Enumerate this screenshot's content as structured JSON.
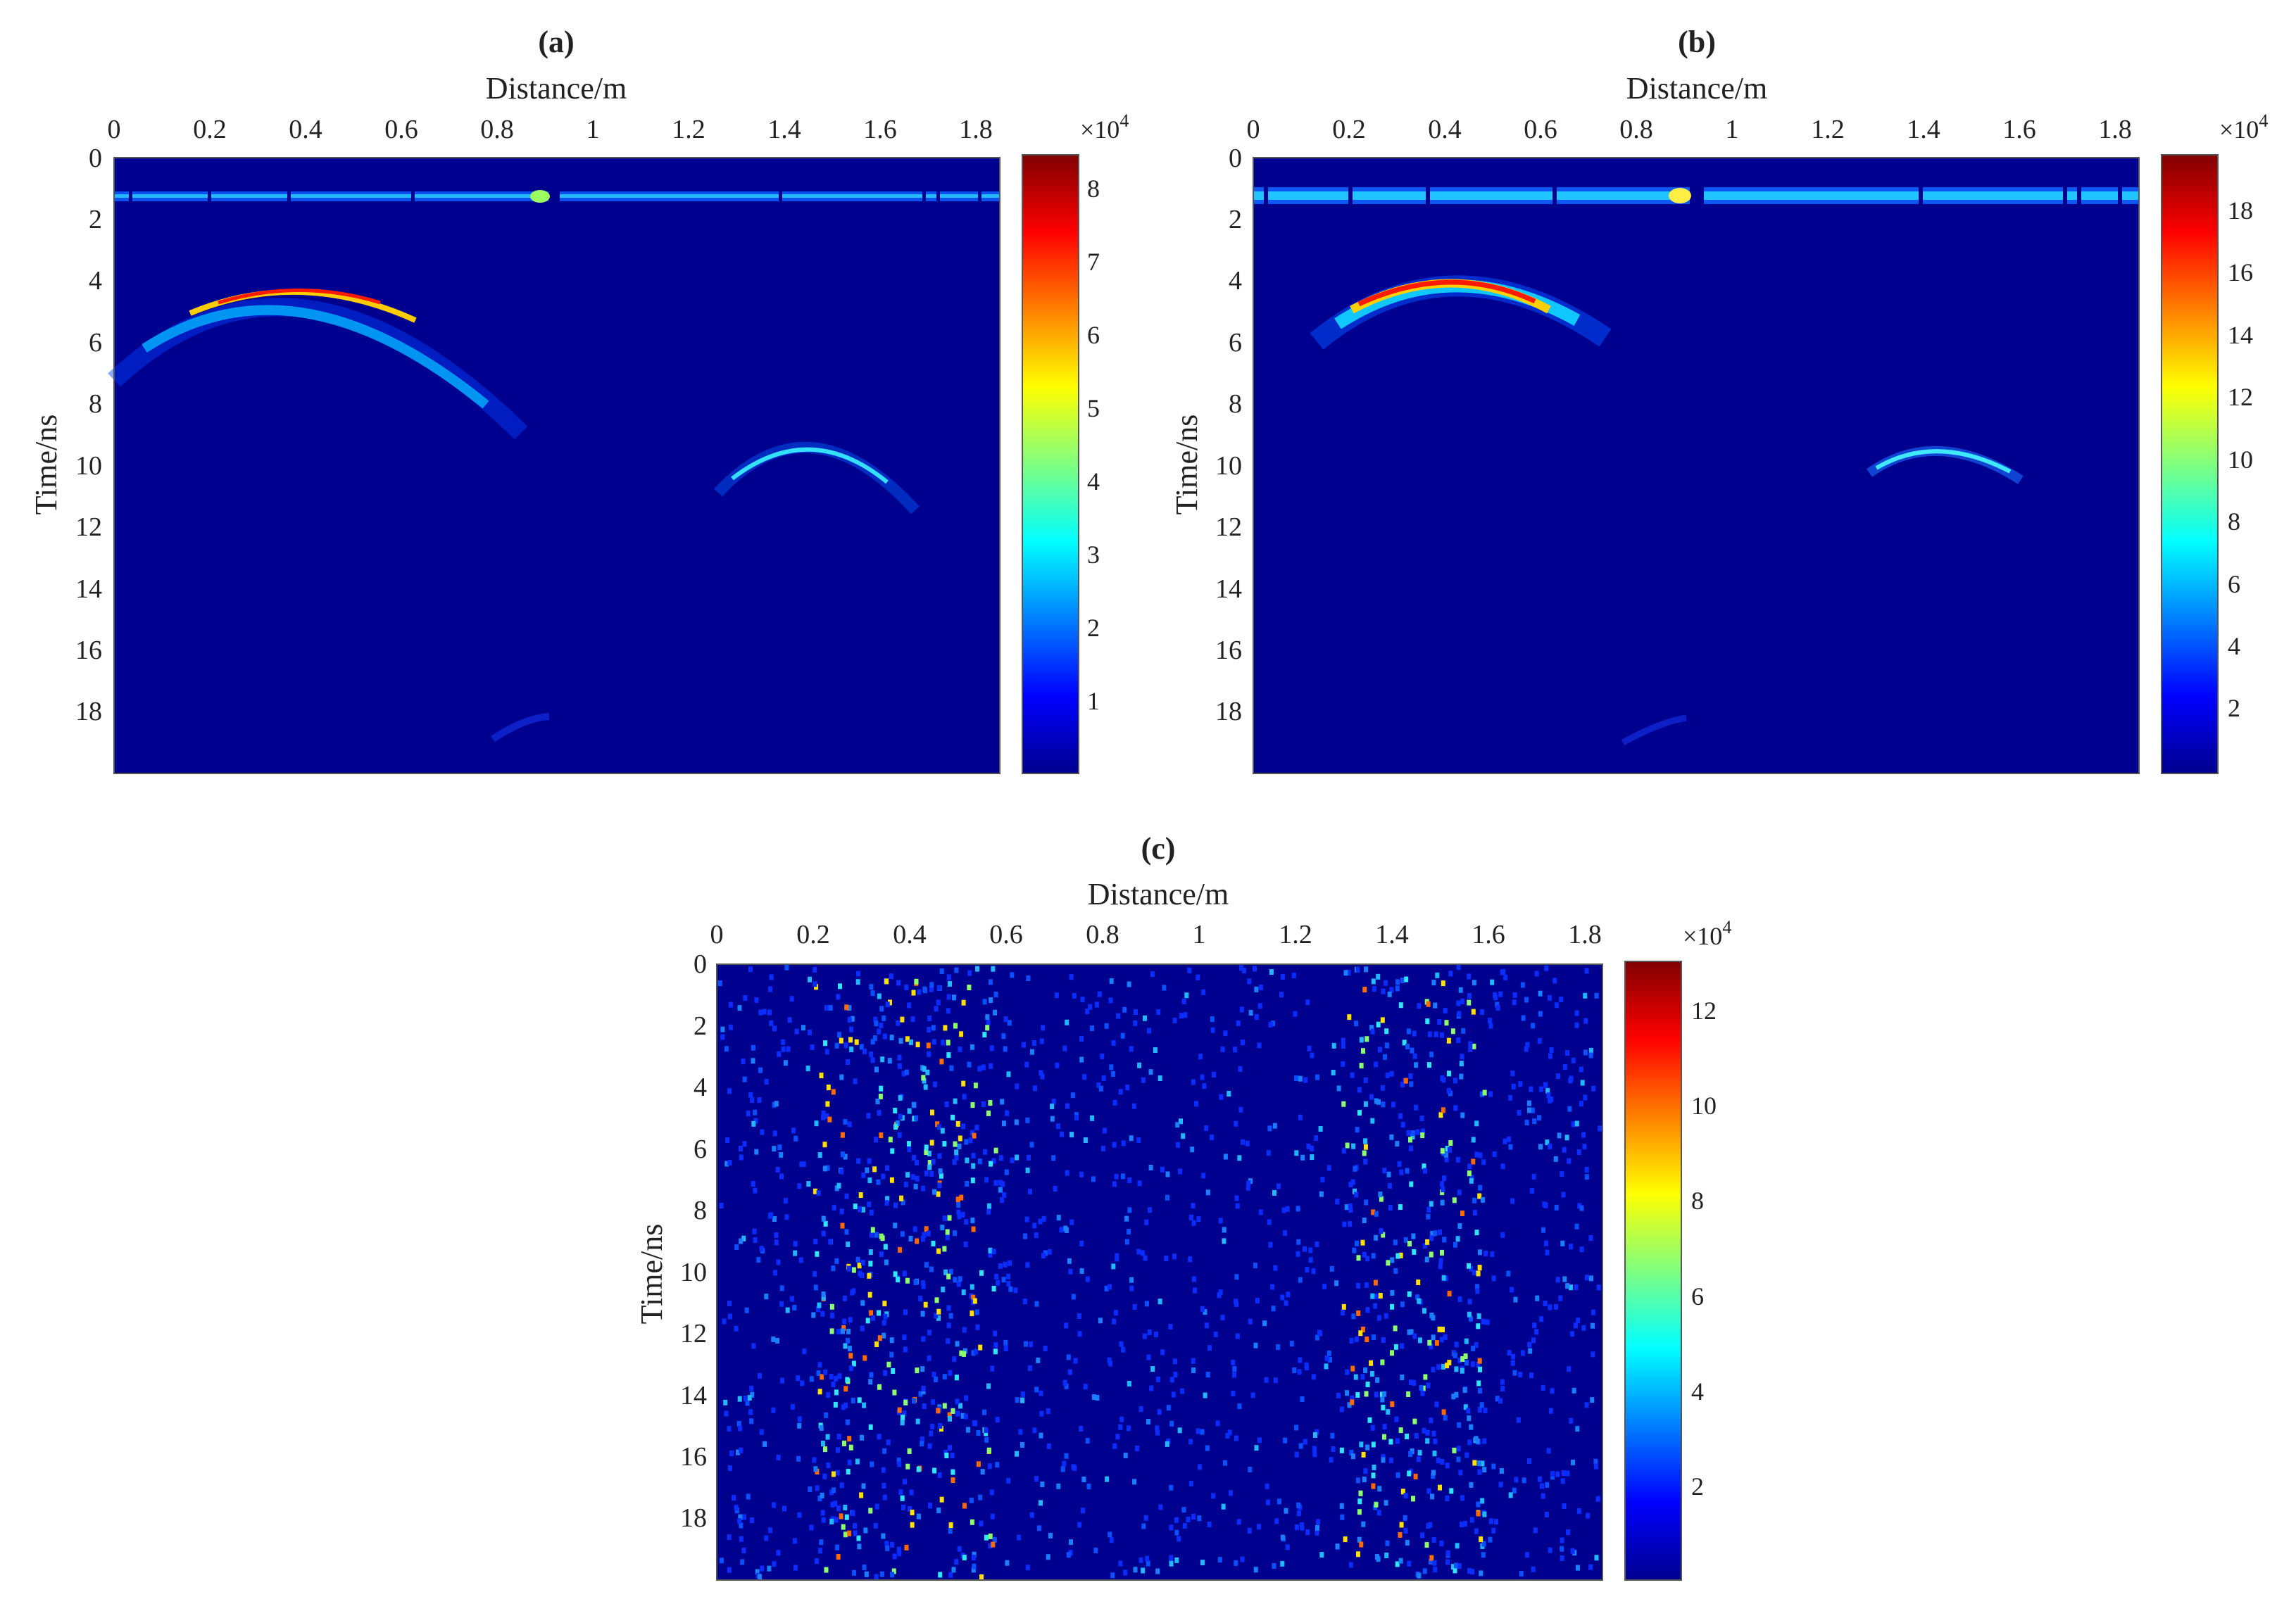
{
  "chart_data": [
    {
      "type": "heatmap",
      "panel_label": "(a)",
      "xlabel": "Distance/m",
      "ylabel": "Time/ns",
      "xlim": [
        0,
        1.85
      ],
      "ylim": [
        0,
        20
      ],
      "x_ticks": [
        "0",
        "0.2",
        "0.4",
        "0.6",
        "0.8",
        "1",
        "1.2",
        "1.4",
        "1.6",
        "1.8"
      ],
      "y_ticks": [
        "0",
        "2",
        "4",
        "6",
        "8",
        "10",
        "12",
        "14",
        "16",
        "18"
      ],
      "colorbar": {
        "multiplier": "×10",
        "exponent": "4",
        "range": [
          0,
          8.5
        ],
        "ticks": [
          "1",
          "2",
          "3",
          "4",
          "5",
          "6",
          "7",
          "8"
        ]
      },
      "features": {
        "direct_wave_time_ns": 1.3,
        "direct_wave_amplitude": 2.8,
        "hyperbolas": [
          {
            "apex_x_m": 0.38,
            "apex_t_ns": 4.7,
            "amplitude": 8.3
          },
          {
            "apex_x_m": 1.45,
            "apex_t_ns": 9.8,
            "amplitude": 3.0
          }
        ]
      }
    },
    {
      "type": "heatmap",
      "panel_label": "(b)",
      "xlabel": "Distance/m",
      "ylabel": "Time/ns",
      "xlim": [
        0,
        1.85
      ],
      "ylim": [
        0,
        20
      ],
      "x_ticks": [
        "0",
        "0.2",
        "0.4",
        "0.6",
        "0.8",
        "1",
        "1.2",
        "1.4",
        "1.6",
        "1.8"
      ],
      "y_ticks": [
        "0",
        "2",
        "4",
        "6",
        "8",
        "10",
        "12",
        "14",
        "16",
        "18"
      ],
      "colorbar": {
        "multiplier": "×10",
        "exponent": "4",
        "range": [
          0,
          19.8
        ],
        "ticks": [
          "2",
          "4",
          "6",
          "8",
          "10",
          "12",
          "14",
          "16",
          "18"
        ]
      },
      "features": {
        "direct_wave_time_ns": 1.3,
        "direct_wave_amplitude": 6.0,
        "hyperbolas": [
          {
            "apex_x_m": 0.4,
            "apex_t_ns": 4.6,
            "amplitude": 18.5
          },
          {
            "apex_x_m": 1.44,
            "apex_t_ns": 9.8,
            "amplitude": 6.0
          }
        ]
      }
    },
    {
      "type": "heatmap",
      "panel_label": "(c)",
      "xlabel": "Distance/m",
      "ylabel": "Time/ns",
      "xlim": [
        0,
        1.85
      ],
      "ylim": [
        0,
        20
      ],
      "x_ticks": [
        "0",
        "0.2",
        "0.4",
        "0.6",
        "0.8",
        "1",
        "1.2",
        "1.4",
        "1.6",
        "1.8"
      ],
      "y_ticks": [
        "0",
        "2",
        "4",
        "6",
        "8",
        "10",
        "12",
        "14",
        "16",
        "18"
      ],
      "colorbar": {
        "multiplier": "×10",
        "exponent": "4",
        "range": [
          0,
          13
        ],
        "ticks": [
          "2",
          "4",
          "6",
          "8",
          "10",
          "12"
        ]
      },
      "features": {
        "noise_bands_m": [
          [
            0.2,
            0.58
          ],
          [
            1.3,
            1.6
          ]
        ],
        "peak_amplitude": 11.5
      }
    }
  ]
}
